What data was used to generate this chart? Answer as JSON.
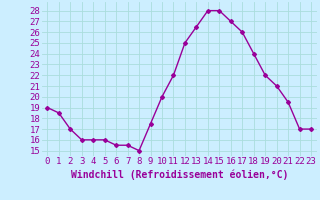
{
  "x": [
    0,
    1,
    2,
    3,
    4,
    5,
    6,
    7,
    8,
    9,
    10,
    11,
    12,
    13,
    14,
    15,
    16,
    17,
    18,
    19,
    20,
    21,
    22,
    23
  ],
  "y": [
    19,
    18.5,
    17,
    16,
    16,
    16,
    15.5,
    15.5,
    15,
    17.5,
    20,
    22,
    25,
    26.5,
    28,
    28,
    27,
    26,
    24,
    22,
    21,
    19.5,
    17,
    17
  ],
  "line_color": "#990099",
  "marker": "D",
  "marker_size": 2,
  "bg_color": "#cceeff",
  "grid_color": "#aadddd",
  "xlabel": "Windchill (Refroidissement éolien,°C)",
  "xlabel_color": "#990099",
  "xlabel_fontsize": 7,
  "ylabel_ticks": [
    15,
    16,
    17,
    18,
    19,
    20,
    21,
    22,
    23,
    24,
    25,
    26,
    27,
    28
  ],
  "ylim": [
    14.5,
    28.8
  ],
  "xlim": [
    -0.5,
    23.5
  ],
  "tick_fontsize": 6.5,
  "tick_color": "#990099",
  "line_width": 1.0
}
